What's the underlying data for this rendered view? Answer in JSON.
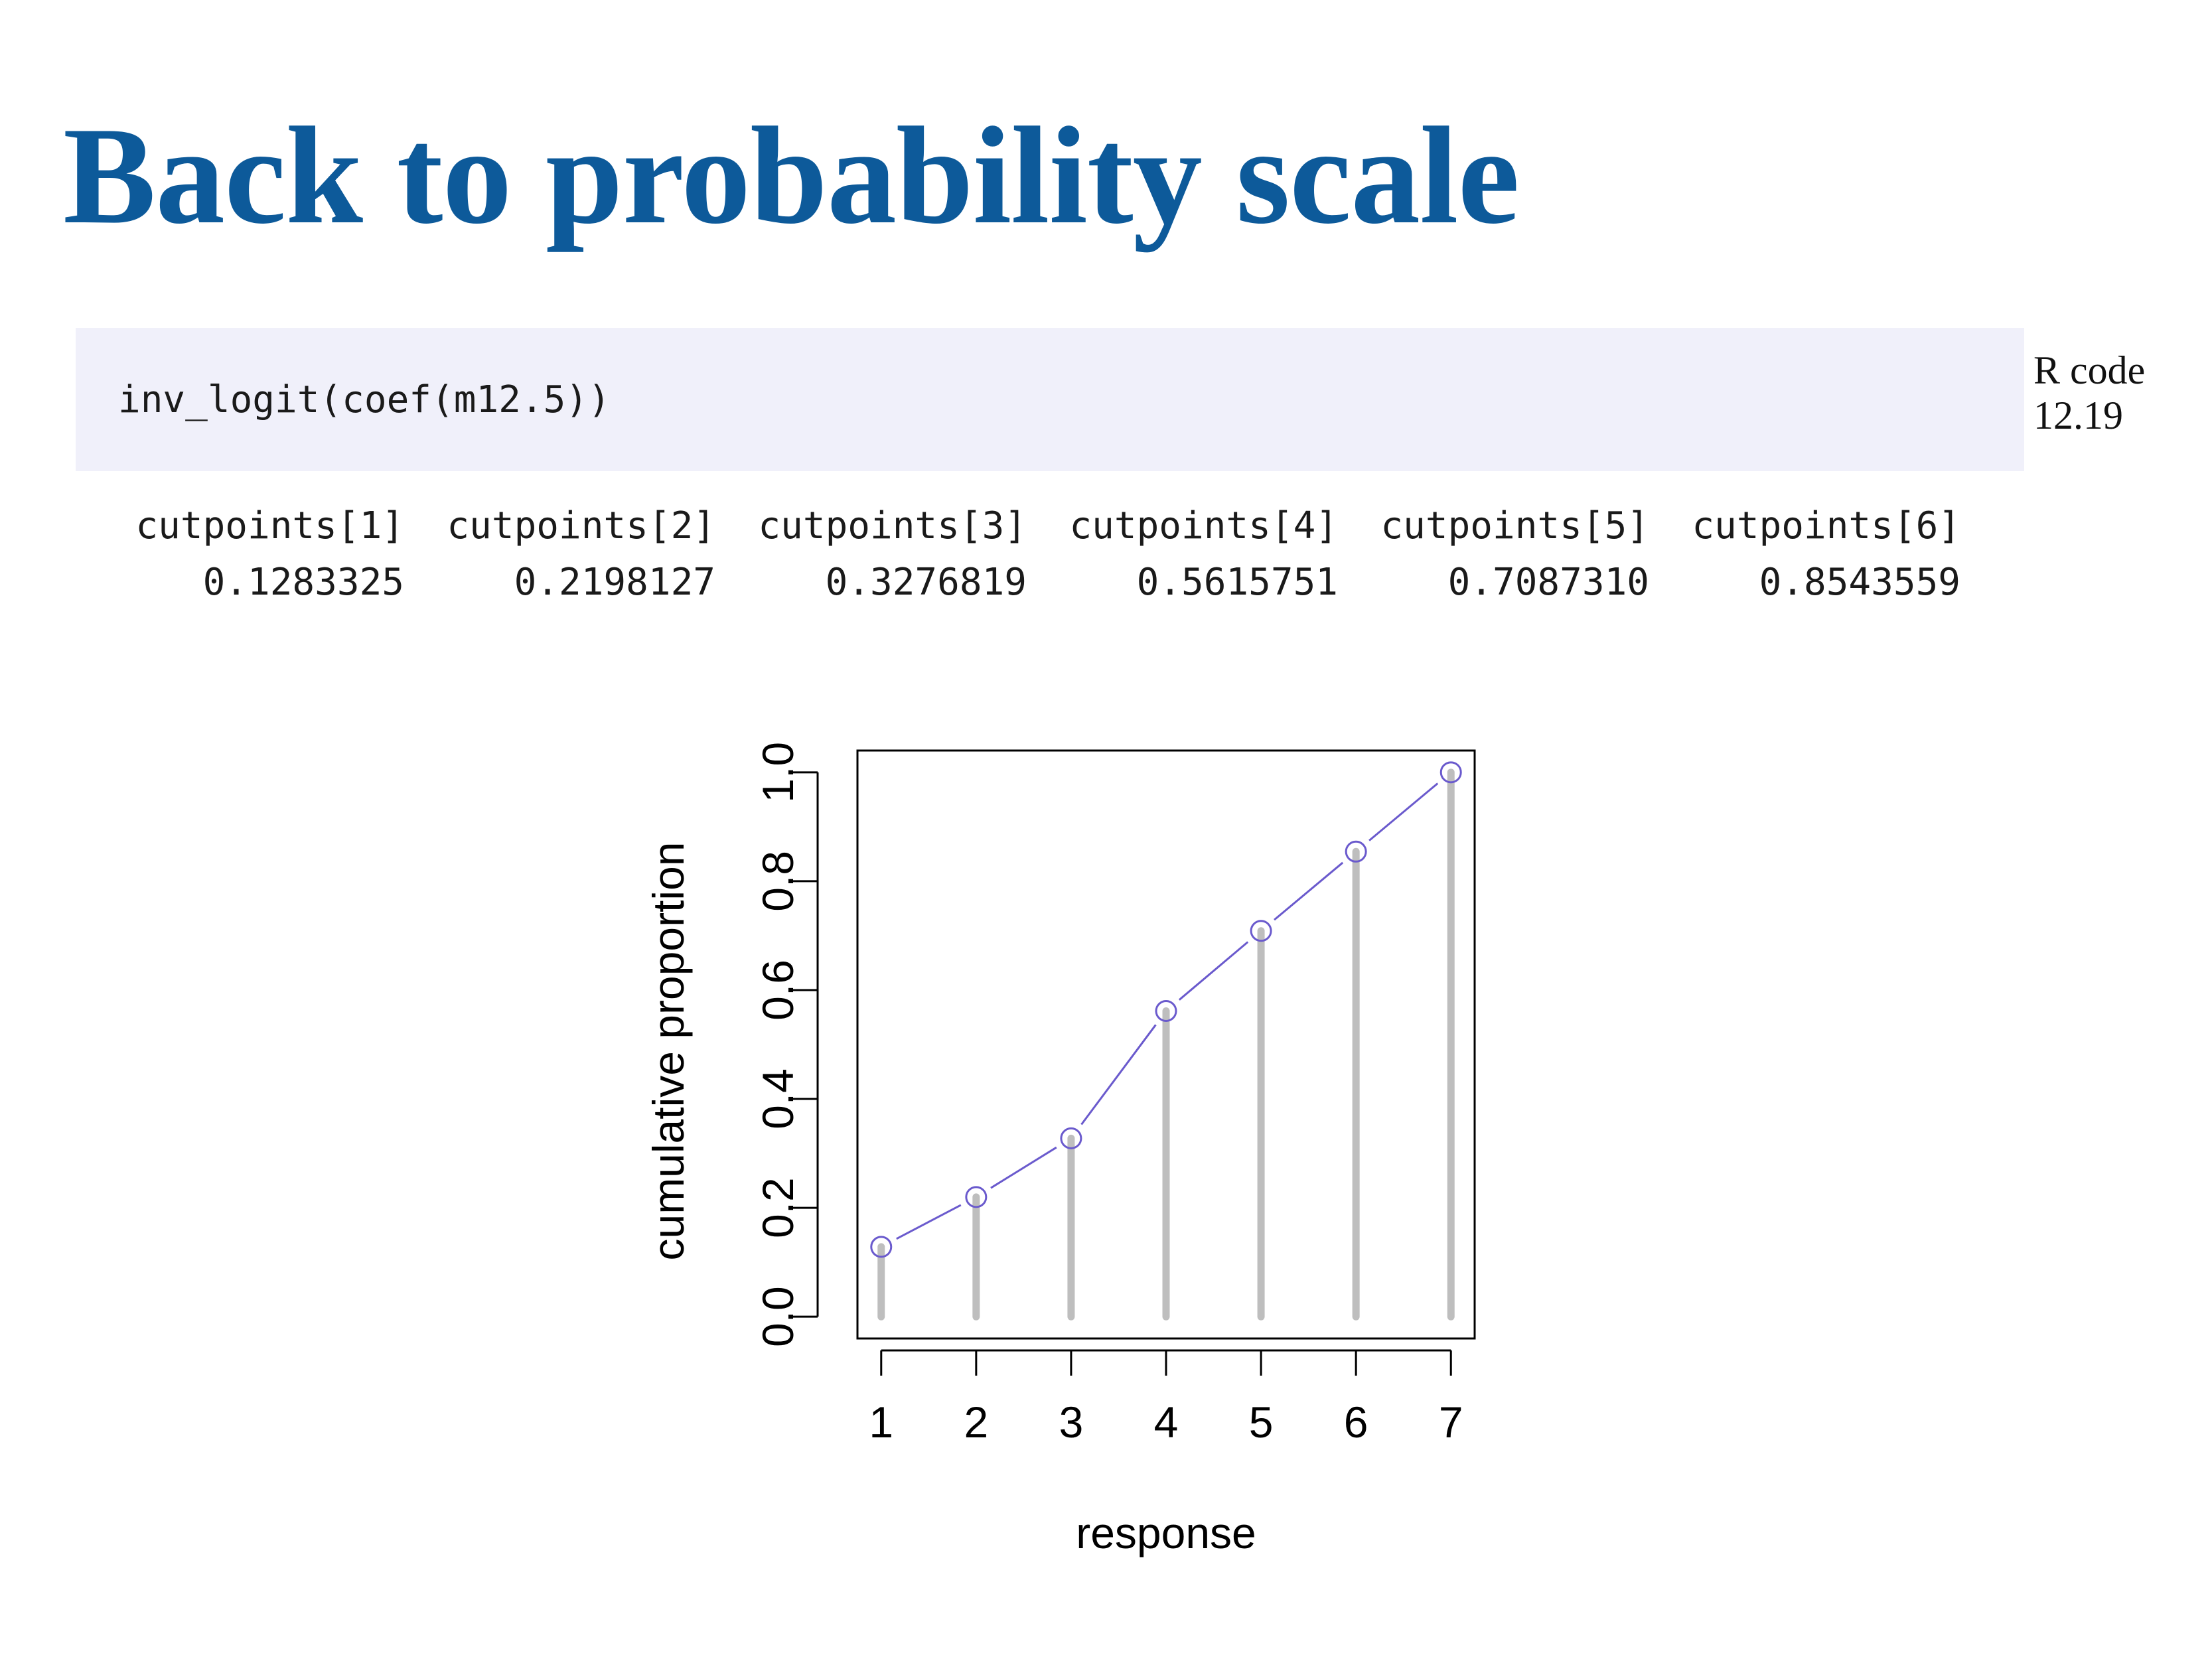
{
  "slide": {
    "title": "Back to probability scale"
  },
  "code": {
    "line": "inv_logit(coef(m12.5))",
    "caption_line1": "R code",
    "caption_line2": "12.19"
  },
  "output": {
    "names": [
      "cutpoints[1]",
      "cutpoints[2]",
      "cutpoints[3]",
      "cutpoints[4]",
      "cutpoints[5]",
      "cutpoints[6]"
    ],
    "values": [
      "0.1283325",
      "0.2198127",
      "0.3276819",
      "0.5615751",
      "0.7087310",
      "0.8543559"
    ]
  },
  "chart_data": {
    "type": "line",
    "title": "",
    "xlabel": "response",
    "ylabel": "cumulative proportion",
    "x": [
      1,
      2,
      3,
      4,
      5,
      6,
      7
    ],
    "y": [
      0.1283325,
      0.2198127,
      0.3276819,
      0.5615751,
      0.708731,
      0.8543559,
      1.0
    ],
    "xlim": [
      0.75,
      7.25
    ],
    "ylim": [
      -0.04,
      1.04
    ],
    "x_ticks": [
      "1",
      "2",
      "3",
      "4",
      "5",
      "6",
      "7"
    ],
    "y_ticks": [
      "0.0",
      "0.2",
      "0.4",
      "0.6",
      "0.8",
      "1.0"
    ],
    "y_tick_values": [
      0,
      0.2,
      0.4,
      0.6,
      0.8,
      1.0
    ],
    "grid": false,
    "line_color": "#6a5acd",
    "stem_color": "#bebebe",
    "marker": "open-circle"
  }
}
